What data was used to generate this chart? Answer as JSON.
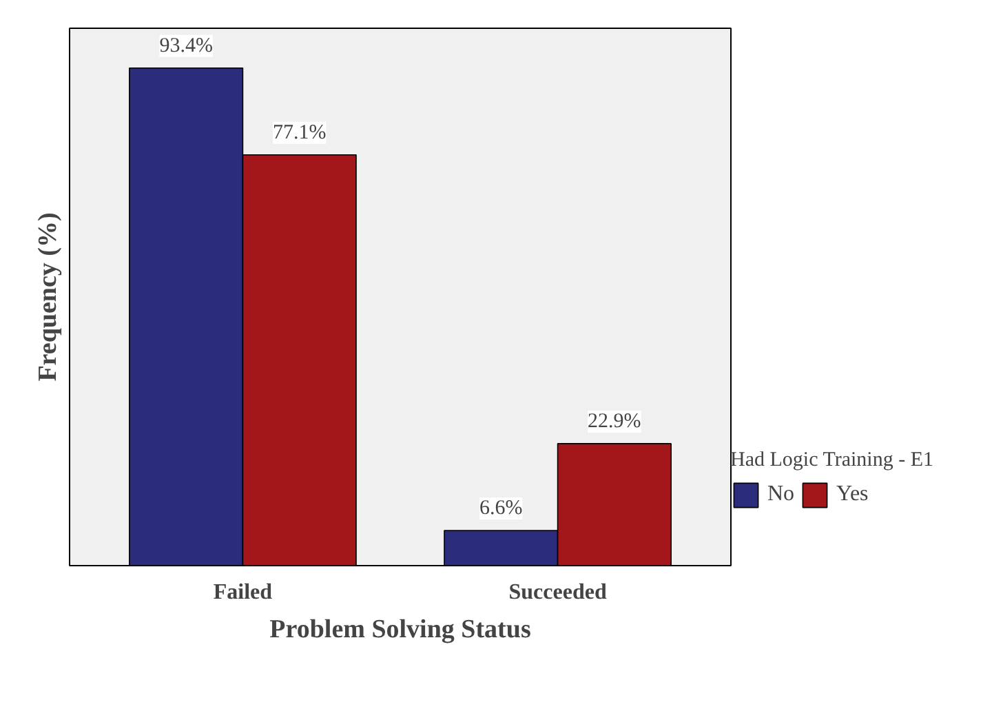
{
  "chart_data": {
    "type": "bar",
    "xlabel": "Problem Solving Status",
    "ylabel": "Frequency (%)",
    "legend_title": "Had Logic Training - E1",
    "categories": [
      "Failed",
      "Succeeded"
    ],
    "series": [
      {
        "name": "No",
        "color": "#2b2d7c",
        "values": [
          93.4,
          6.6
        ],
        "value_labels": [
          "93.4%",
          "6.6%"
        ]
      },
      {
        "name": "Yes",
        "color": "#a3161a",
        "values": [
          77.1,
          22.9
        ],
        "value_labels": [
          "77.1%",
          "22.9%"
        ]
      }
    ],
    "legend": "right"
  }
}
